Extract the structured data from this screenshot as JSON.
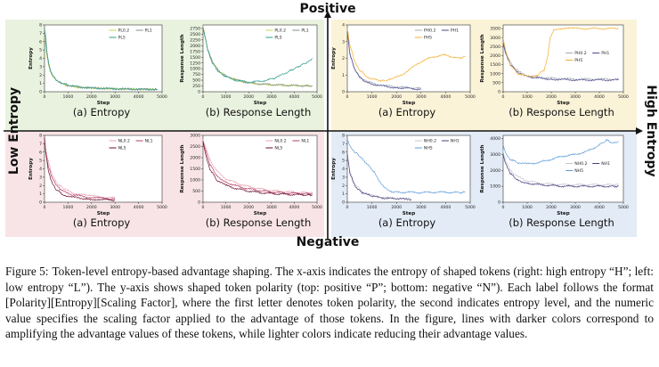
{
  "axes_labels": {
    "top": "Positive",
    "bottom": "Negative",
    "left": "Low Entropy",
    "right": "High Entropy"
  },
  "caption": {
    "label": "Figure 5:",
    "text": "Token-level entropy-based advantage shaping. The x-axis indicates the entropy of shaped tokens (right: high entropy “H”; left: low entropy “L”). The y-axis shows shaped token polarity (top: positive “P”; bottom: negative “N”). Each label follows the format [Polarity][Entropy][Scaling Factor], where the first letter denotes token polarity, the second indicates entropy level, and the numeric value specifies the scaling factor applied to the advantage of those tokens. In the figure, lines with darker colors correspond to amplifying the advantage values of these tokens, while lighter colors indicate reducing their advantage values."
  },
  "colors": {
    "PL_bg": "#e9f2df",
    "PH_bg": "#fbf3d8",
    "NL_bg": "#f8e4e6",
    "NH_bg": "#e3ebf6"
  },
  "chart_data": [
    {
      "id": "PL-entropy",
      "type": "line",
      "caption": "(a) Entropy",
      "xlabel": "Step",
      "ylabel": "Entropy",
      "xlim": [
        0,
        5000
      ],
      "ylim": [
        0,
        8
      ],
      "xticks": [
        0,
        1000,
        2000,
        3000,
        4000,
        5000
      ],
      "yticks": [
        0,
        1,
        2,
        3,
        4,
        5,
        6,
        7,
        8
      ],
      "series": [
        {
          "name": "PL0.2",
          "color": "#c5d84a",
          "x": [
            0,
            50,
            100,
            200,
            300,
            500,
            700,
            1000,
            1500,
            2000,
            3000,
            4000,
            4800
          ],
          "y": [
            6.6,
            5.5,
            4.2,
            2.8,
            2.0,
            1.3,
            1.0,
            0.7,
            0.5,
            0.45,
            0.35,
            0.3,
            0.3
          ]
        },
        {
          "name": "PL1",
          "color": "#7e8c90",
          "x": [
            0,
            50,
            100,
            200,
            300,
            500,
            700,
            1000,
            1500,
            2000,
            3000,
            4000,
            4800
          ],
          "y": [
            7.0,
            6.0,
            4.6,
            3.0,
            2.1,
            1.4,
            1.05,
            0.75,
            0.55,
            0.45,
            0.35,
            0.3,
            0.28
          ]
        },
        {
          "name": "PL5",
          "color": "#2e9e8e",
          "x": [
            0,
            50,
            100,
            200,
            300,
            500,
            700,
            1000,
            1500,
            2000,
            3000,
            4000,
            4800
          ],
          "y": [
            7.6,
            6.6,
            4.8,
            3.1,
            2.2,
            1.45,
            1.1,
            0.8,
            0.55,
            0.45,
            0.35,
            0.3,
            0.28
          ]
        }
      ]
    },
    {
      "id": "PL-length",
      "type": "line",
      "caption": "(b) Response Length",
      "xlabel": "Step",
      "ylabel": "Response Length",
      "xlim": [
        0,
        5000
      ],
      "ylim": [
        0,
        2900
      ],
      "xticks": [
        0,
        1000,
        2000,
        3000,
        4000,
        5000
      ],
      "yticks": [
        0,
        250,
        500,
        750,
        1000,
        1250,
        1500,
        1750,
        2000,
        2250,
        2500,
        2750
      ],
      "series": [
        {
          "name": "PL0.2",
          "color": "#c5d84a",
          "x": [
            0,
            80,
            200,
            400,
            700,
            1000,
            1500,
            2000,
            2500,
            3000,
            3500,
            4000,
            4500,
            4800
          ],
          "y": [
            2850,
            2500,
            1900,
            1350,
            900,
            700,
            500,
            380,
            330,
            300,
            280,
            270,
            260,
            250
          ]
        },
        {
          "name": "PL1",
          "color": "#7e8c90",
          "x": [
            0,
            80,
            200,
            400,
            700,
            1000,
            1500,
            2000,
            2500,
            3000,
            3500,
            4000,
            4500,
            4800
          ],
          "y": [
            2800,
            2450,
            1850,
            1300,
            880,
            680,
            500,
            390,
            340,
            310,
            290,
            270,
            260,
            250
          ]
        },
        {
          "name": "PL5",
          "color": "#2e9e8e",
          "x": [
            0,
            80,
            200,
            400,
            700,
            1000,
            1500,
            2000,
            2500,
            3000,
            3300,
            3700,
            4000,
            4300,
            4600,
            4800
          ],
          "y": [
            2700,
            2400,
            1800,
            1250,
            850,
            650,
            480,
            420,
            450,
            550,
            650,
            850,
            1000,
            1150,
            1300,
            1450
          ]
        }
      ]
    },
    {
      "id": "PH-entropy",
      "type": "line",
      "caption": "(a) Entropy",
      "xlabel": "Step",
      "ylabel": "Entropy",
      "xlim": [
        0,
        5000
      ],
      "ylim": [
        0,
        4
      ],
      "xticks": [
        0,
        1000,
        2000,
        3000,
        4000,
        5000
      ],
      "yticks": [
        0,
        1,
        2,
        3,
        4
      ],
      "series": [
        {
          "name": "PH0.2",
          "color": "#a0a8b6",
          "x": [
            0,
            100,
            300,
            500,
            800,
            1200,
            1600,
            2000,
            2500,
            3000
          ],
          "y": [
            3.7,
            2.4,
            1.4,
            0.9,
            0.6,
            0.45,
            0.35,
            0.3,
            0.25,
            0.2
          ]
        },
        {
          "name": "PH1",
          "color": "#4a4a88",
          "x": [
            0,
            100,
            300,
            500,
            800,
            1200,
            1600,
            2000,
            2500,
            3000
          ],
          "y": [
            3.6,
            2.3,
            1.3,
            0.85,
            0.55,
            0.4,
            0.3,
            0.25,
            0.2,
            0.15
          ]
        },
        {
          "name": "PH5",
          "color": "#f4ae2e",
          "x": [
            0,
            100,
            300,
            500,
            800,
            1200,
            1500,
            1800,
            2200,
            2600,
            3000,
            3500,
            4000,
            4500,
            4800
          ],
          "y": [
            3.8,
            2.8,
            1.8,
            1.3,
            0.9,
            0.7,
            0.65,
            0.75,
            1.0,
            1.4,
            1.8,
            2.1,
            2.2,
            2.0,
            2.1
          ]
        }
      ]
    },
    {
      "id": "PH-length",
      "type": "line",
      "caption": "(b) Response Length",
      "xlabel": "Step",
      "ylabel": "Response Length",
      "xlim": [
        0,
        5000
      ],
      "ylim": [
        0,
        3700
      ],
      "xticks": [
        0,
        1000,
        2000,
        3000,
        4000,
        5000
      ],
      "yticks": [
        0,
        500,
        1000,
        1500,
        2000,
        2500,
        3000,
        3500
      ],
      "series": [
        {
          "name": "PH0.2",
          "color": "#a0a8b6",
          "x": [
            0,
            100,
            300,
            600,
            1000,
            1500,
            2000,
            3000,
            4000,
            4800
          ],
          "y": [
            2800,
            2200,
            1600,
            1150,
            900,
            800,
            750,
            700,
            700,
            700
          ]
        },
        {
          "name": "PH1",
          "color": "#4a4a88",
          "x": [
            0,
            100,
            300,
            600,
            1000,
            1500,
            2000,
            3000,
            4000,
            4800
          ],
          "y": [
            2700,
            2100,
            1500,
            1100,
            850,
            750,
            700,
            650,
            650,
            650
          ]
        },
        {
          "name": "PH5",
          "color": "#f4ae2e",
          "x": [
            0,
            100,
            300,
            600,
            1000,
            1400,
            1700,
            1850,
            1950,
            2100,
            2300,
            3000,
            4000,
            4800
          ],
          "y": [
            3000,
            2300,
            1500,
            1000,
            850,
            900,
            1200,
            1900,
            3000,
            3400,
            3500,
            3500,
            3500,
            3500
          ]
        }
      ]
    },
    {
      "id": "NL-entropy",
      "type": "line",
      "caption": "(a) Entropy",
      "xlabel": "Step",
      "ylabel": "Entropy",
      "xlim": [
        0,
        5000
      ],
      "ylim": [
        0,
        8
      ],
      "xticks": [
        0,
        1000,
        2000,
        3000,
        4000,
        5000
      ],
      "yticks": [
        0,
        1,
        2,
        3,
        4,
        5,
        6,
        7,
        8
      ],
      "series": [
        {
          "name": "NL0.2",
          "color": "#eaa0ae",
          "x": [
            0,
            50,
            150,
            300,
            500,
            800,
            1200,
            1800,
            2500,
            3000
          ],
          "y": [
            7.0,
            6.2,
            5.0,
            3.5,
            2.4,
            1.6,
            1.1,
            0.8,
            0.6,
            0.5
          ]
        },
        {
          "name": "NL1",
          "color": "#b04068",
          "x": [
            0,
            50,
            150,
            300,
            500,
            800,
            1200,
            1800,
            2500,
            3000
          ],
          "y": [
            7.2,
            6.0,
            4.5,
            3.0,
            2.0,
            1.3,
            0.9,
            0.6,
            0.45,
            0.4
          ]
        },
        {
          "name": "NL5",
          "color": "#6e0e2e",
          "x": [
            0,
            50,
            150,
            300,
            500,
            800,
            1200,
            1800,
            2500,
            3000
          ],
          "y": [
            7.8,
            6.0,
            4.0,
            2.4,
            1.5,
            0.9,
            0.6,
            0.4,
            0.3,
            0.25
          ]
        }
      ]
    },
    {
      "id": "NL-length",
      "type": "line",
      "caption": "(b) Response Length",
      "xlabel": "Step",
      "ylabel": "Response Length",
      "xlim": [
        0,
        5000
      ],
      "ylim": [
        0,
        3000
      ],
      "xticks": [
        0,
        1000,
        2000,
        3000,
        4000,
        5000
      ],
      "yticks": [
        0,
        500,
        1000,
        1500,
        2000,
        2500,
        3000
      ],
      "series": [
        {
          "name": "NL0.2",
          "color": "#eaa0ae",
          "x": [
            0,
            100,
            300,
            600,
            1000,
            1500,
            2000,
            2500,
            3000,
            3500,
            4000,
            4500,
            4800
          ],
          "y": [
            2800,
            2500,
            1900,
            1400,
            1050,
            850,
            700,
            600,
            520,
            480,
            450,
            430,
            420
          ]
        },
        {
          "name": "NL1",
          "color": "#b04068",
          "x": [
            0,
            100,
            300,
            600,
            1000,
            1500,
            2000,
            2500,
            3000,
            3500,
            4000,
            4500,
            4800
          ],
          "y": [
            2750,
            2350,
            1700,
            1200,
            900,
            720,
            600,
            520,
            460,
            420,
            400,
            390,
            380
          ]
        },
        {
          "name": "NL5",
          "color": "#6e0e2e",
          "x": [
            0,
            100,
            300,
            600,
            1000,
            1500,
            2000,
            2500,
            3000,
            3500,
            4000,
            4500,
            4800
          ],
          "y": [
            2700,
            2200,
            1500,
            1000,
            750,
            600,
            500,
            430,
            390,
            360,
            340,
            330,
            320
          ]
        }
      ]
    },
    {
      "id": "NH-entropy",
      "type": "line",
      "caption": "(a) Entropy",
      "xlabel": "Step",
      "ylabel": "Entropy",
      "xlim": [
        0,
        5000
      ],
      "ylim": [
        0,
        8
      ],
      "xticks": [
        0,
        1000,
        2000,
        3000,
        4000,
        5000
      ],
      "yticks": [
        0,
        1,
        2,
        3,
        4,
        5,
        6,
        7,
        8
      ],
      "series": [
        {
          "name": "NH0.2",
          "color": "#c1c6ce",
          "x": [
            0,
            100,
            300,
            600,
            1000,
            1500,
            2000,
            2600
          ],
          "y": [
            5.5,
            3.8,
            2.2,
            1.3,
            0.8,
            0.55,
            0.45,
            0.4
          ]
        },
        {
          "name": "NH1",
          "color": "#4a3c7e",
          "x": [
            0,
            100,
            300,
            600,
            1000,
            1500,
            2000,
            2600
          ],
          "y": [
            5.8,
            3.6,
            2.0,
            1.1,
            0.7,
            0.5,
            0.4,
            0.35
          ]
        },
        {
          "name": "NH5",
          "color": "#5c9bd8",
          "x": [
            0,
            100,
            250,
            500,
            800,
            1100,
            1300,
            1500,
            1700,
            2000,
            2500,
            3000,
            3500,
            4000,
            4500,
            4800
          ],
          "y": [
            7.5,
            6.8,
            6.2,
            5.5,
            4.6,
            3.6,
            2.6,
            1.8,
            1.3,
            1.2,
            1.2,
            1.15,
            1.2,
            1.2,
            1.15,
            1.2
          ]
        }
      ]
    },
    {
      "id": "NH-length",
      "type": "line",
      "caption": "(b) Response Length",
      "xlabel": "Step",
      "ylabel": "Response Length",
      "xlim": [
        0,
        5000
      ],
      "ylim": [
        0,
        4200
      ],
      "xticks": [
        0,
        1000,
        2000,
        3000,
        4000,
        5000
      ],
      "yticks": [
        0,
        1000,
        2000,
        3000,
        4000
      ],
      "series": [
        {
          "name": "NH0.2",
          "color": "#c1c6ce",
          "x": [
            0,
            100,
            300,
            600,
            1000,
            1500,
            2000,
            2500,
            3000,
            3500,
            4000,
            4500,
            4800
          ],
          "y": [
            3200,
            2600,
            2000,
            1600,
            1350,
            1200,
            1150,
            1100,
            1100,
            1100,
            1100,
            1100,
            1100
          ]
        },
        {
          "name": "NH1",
          "color": "#4a3c7e",
          "x": [
            0,
            100,
            300,
            600,
            1000,
            1500,
            2000,
            2500,
            3000,
            3500,
            4000,
            4500,
            4800
          ],
          "y": [
            3000,
            2400,
            1800,
            1400,
            1200,
            1100,
            1050,
            1000,
            1000,
            1000,
            1000,
            1000,
            1000
          ]
        },
        {
          "name": "NH5",
          "color": "#5c9bd8",
          "x": [
            0,
            100,
            300,
            600,
            1000,
            1500,
            2000,
            2500,
            3000,
            3500,
            4000,
            4300,
            4600,
            4800
          ],
          "y": [
            3600,
            3100,
            2700,
            2500,
            2400,
            2500,
            2700,
            2900,
            3000,
            3200,
            3600,
            3900,
            3700,
            3800
          ]
        }
      ]
    }
  ]
}
